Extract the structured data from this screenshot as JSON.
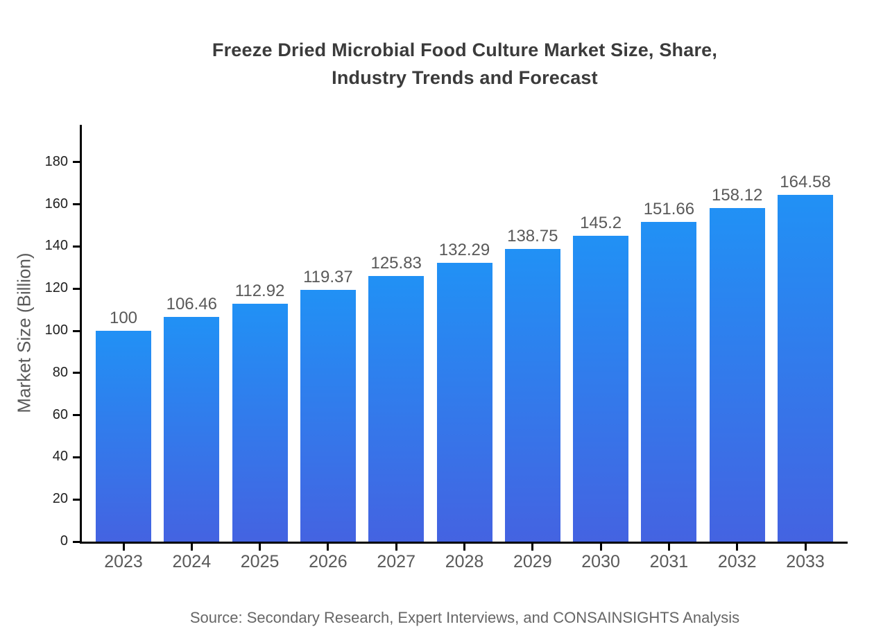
{
  "header": {
    "title_line1": "Freeze Dried Microbial Food Culture Market Size, Share,",
    "title_line2": "Industry Trends and Forecast"
  },
  "footer": {
    "source": "Source: Secondary Research, Expert Interviews, and CONSAINSIGHTS Analysis"
  },
  "chart_data": {
    "type": "bar",
    "title": "Freeze Dried Microbial Food Culture Market Size, Share, Industry Trends and Forecast",
    "xlabel": "",
    "ylabel": "Market Size (Billion)",
    "categories": [
      "2023",
      "2024",
      "2025",
      "2026",
      "2027",
      "2028",
      "2029",
      "2030",
      "2031",
      "2032",
      "2033"
    ],
    "values": [
      100,
      106.46,
      112.92,
      119.37,
      125.83,
      132.29,
      138.75,
      145.2,
      151.66,
      158.12,
      164.58
    ],
    "value_labels": [
      "100",
      "106.46",
      "112.92",
      "119.37",
      "125.83",
      "132.29",
      "138.75",
      "145.2",
      "151.66",
      "158.12",
      "164.58"
    ],
    "yticks": [
      0,
      20,
      40,
      60,
      80,
      100,
      120,
      140,
      160,
      180
    ],
    "ylim": [
      0,
      198
    ],
    "grid": false,
    "legend_position": "none",
    "colors": {
      "bar_gradient_top": "#2191f5",
      "bar_gradient_bottom": "#4463e1",
      "axis": "#000000",
      "tick_label": "#1f1f1f",
      "category_label": "#595959",
      "value_label": "#595959",
      "title": "#3b3b3b",
      "source": "#666666"
    }
  }
}
